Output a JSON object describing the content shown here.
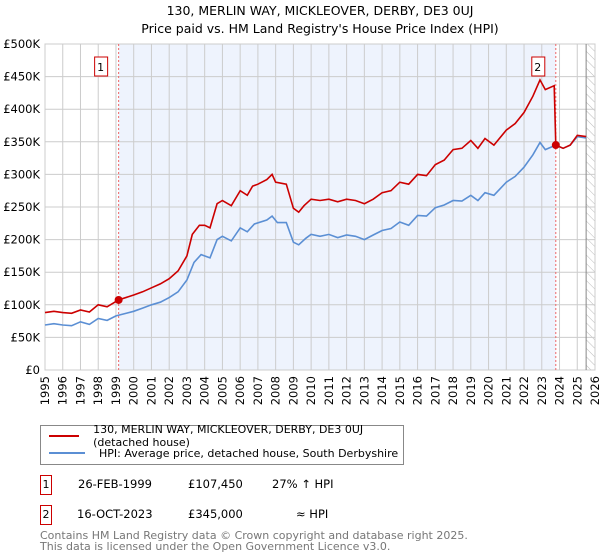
{
  "title_line1": "130, MERLIN WAY, MICKLEOVER, DERBY, DE3 0UJ",
  "title_line2": "Price paid vs. HM Land Registry's House Price Index (HPI)",
  "chart_data": {
    "type": "line",
    "xlim": [
      1995,
      2026
    ],
    "ylim": [
      0,
      500000
    ],
    "yticks": [
      0,
      50000,
      100000,
      150000,
      200000,
      250000,
      300000,
      350000,
      400000,
      450000,
      500000
    ],
    "ytick_labels": [
      "£0",
      "£50K",
      "£100K",
      "£150K",
      "£200K",
      "£250K",
      "£300K",
      "£350K",
      "£400K",
      "£450K",
      "£500K"
    ],
    "xticks": [
      1995,
      1996,
      1997,
      1998,
      1999,
      2000,
      2001,
      2002,
      2003,
      2004,
      2005,
      2006,
      2007,
      2008,
      2009,
      2010,
      2011,
      2012,
      2013,
      2014,
      2015,
      2016,
      2017,
      2018,
      2019,
      2020,
      2021,
      2022,
      2023,
      2024,
      2025,
      2026
    ],
    "grid": true,
    "shaded_range": [
      1999.15,
      2023.79
    ],
    "hatched_from": 2025.5,
    "colors": {
      "price": "#cc0000",
      "hpi": "#5b8fd4",
      "shade": "#eef3fd",
      "marker_line": "#ee6666"
    },
    "series": [
      {
        "name": "130, MERLIN WAY, MICKLEOVER, DERBY, DE3 0UJ (detached house)",
        "color": "#cc0000",
        "x": [
          1995,
          1995.5,
          1996,
          1996.5,
          1997,
          1997.5,
          1998,
          1998.5,
          1999.15,
          2000,
          2000.5,
          2001,
          2001.5,
          2002,
          2002.5,
          2003,
          2003.3,
          2003.7,
          2004,
          2004.3,
          2004.7,
          2005,
          2005.5,
          2006,
          2006.4,
          2006.7,
          2007,
          2007.5,
          2007.8,
          2008,
          2008.6,
          2009,
          2009.3,
          2009.6,
          2010,
          2010.5,
          2011,
          2011.5,
          2012,
          2012.5,
          2013,
          2013.5,
          2014,
          2014.5,
          2015,
          2015.5,
          2016,
          2016.5,
          2017,
          2017.5,
          2018,
          2018.5,
          2019,
          2019.4,
          2019.8,
          2020.3,
          2021,
          2021.5,
          2022,
          2022.5,
          2022.9,
          2023.2,
          2023.7,
          2023.79,
          2024.2,
          2024.6,
          2025,
          2025.5
        ],
        "y": [
          88000,
          90000,
          88000,
          87000,
          92000,
          89000,
          100000,
          97000,
          107450,
          115000,
          120000,
          126000,
          132000,
          140000,
          152000,
          175000,
          208000,
          222000,
          222000,
          218000,
          255000,
          260000,
          252000,
          275000,
          268000,
          282000,
          285000,
          292000,
          300000,
          288000,
          285000,
          248000,
          242000,
          252000,
          262000,
          260000,
          262000,
          258000,
          262000,
          260000,
          255000,
          262000,
          272000,
          275000,
          288000,
          285000,
          300000,
          298000,
          315000,
          322000,
          338000,
          340000,
          352000,
          340000,
          355000,
          345000,
          368000,
          378000,
          395000,
          420000,
          445000,
          430000,
          436000,
          345000,
          340000,
          345000,
          360000,
          358000
        ]
      },
      {
        "name": "HPI: Average price, detached house, South Derbyshire",
        "color": "#5b8fd4",
        "x": [
          1995,
          1995.5,
          1996,
          1996.5,
          1997,
          1997.5,
          1998,
          1998.5,
          1999,
          2000,
          2000.5,
          2001,
          2001.5,
          2002,
          2002.5,
          2003,
          2003.4,
          2003.8,
          2004.3,
          2004.7,
          2005,
          2005.5,
          2006,
          2006.4,
          2006.8,
          2007.5,
          2007.8,
          2008.1,
          2008.6,
          2009,
          2009.3,
          2009.7,
          2010,
          2010.5,
          2011,
          2011.5,
          2012,
          2012.5,
          2013,
          2013.5,
          2014,
          2014.5,
          2015,
          2015.5,
          2016,
          2016.5,
          2017,
          2017.5,
          2018,
          2018.5,
          2019,
          2019.4,
          2019.8,
          2020.3,
          2021,
          2021.5,
          2022,
          2022.5,
          2022.9,
          2023.2,
          2023.79,
          2024.2,
          2024.6,
          2025,
          2025.5
        ],
        "y": [
          69000,
          71000,
          69000,
          68000,
          74000,
          70000,
          79000,
          76000,
          83000,
          90000,
          95000,
          100000,
          104000,
          111000,
          120000,
          138000,
          165000,
          177000,
          172000,
          200000,
          205000,
          198000,
          218000,
          212000,
          224000,
          230000,
          236000,
          226000,
          226000,
          196000,
          192000,
          202000,
          208000,
          205000,
          208000,
          203000,
          207000,
          205000,
          200000,
          207000,
          214000,
          217000,
          227000,
          222000,
          237000,
          236000,
          249000,
          253000,
          260000,
          259000,
          268000,
          260000,
          272000,
          268000,
          288000,
          297000,
          311000,
          330000,
          349000,
          338000,
          345000,
          340000,
          345000,
          358000,
          356000
        ]
      }
    ],
    "sales": [
      {
        "label": "1",
        "x": 1999.15,
        "y": 107450
      },
      {
        "label": "2",
        "x": 2023.79,
        "y": 345000
      }
    ]
  },
  "legend": {
    "price_label": "130, MERLIN WAY, MICKLEOVER, DERBY, DE3 0UJ (detached house)",
    "hpi_label": "HPI: Average price, detached house, South Derbyshire"
  },
  "transactions": [
    {
      "num": "1",
      "date": "26-FEB-1999",
      "price": "£107,450",
      "hpi": "27% ↑ HPI"
    },
    {
      "num": "2",
      "date": "16-OCT-2023",
      "price": "£345,000",
      "hpi": "≈ HPI"
    }
  ],
  "footer": {
    "line1": "Contains HM Land Registry data © Crown copyright and database right 2025.",
    "line2": "This data is licensed under the Open Government Licence v3.0."
  }
}
